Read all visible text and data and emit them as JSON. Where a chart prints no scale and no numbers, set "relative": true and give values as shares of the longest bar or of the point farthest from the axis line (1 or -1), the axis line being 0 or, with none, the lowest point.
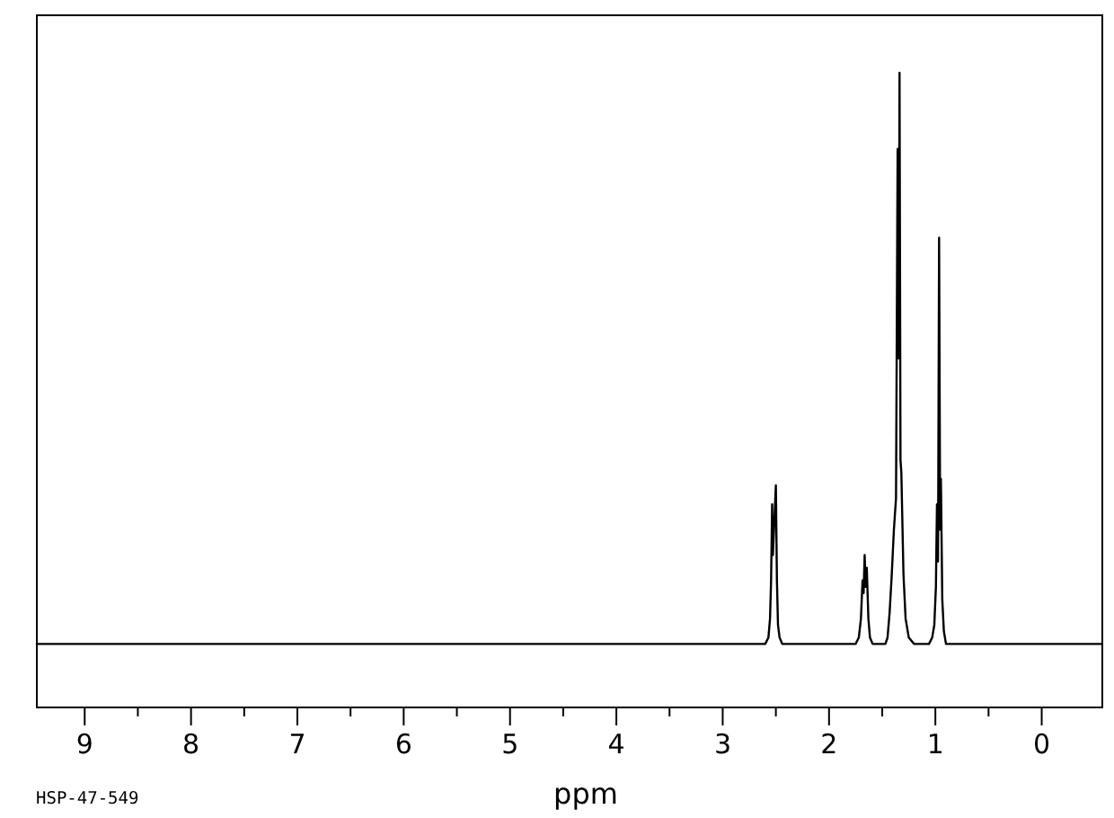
{
  "chart_data": {
    "type": "line",
    "xlabel": "ppm",
    "annotations": [
      "HSP-47-549"
    ],
    "relative": true,
    "color": "#000000",
    "xlim": [
      9.45,
      -0.57
    ],
    "xticks": [
      9,
      {
        "value": 8.5,
        "label": null
      },
      8,
      {
        "value": 7.5,
        "label": null
      },
      7,
      {
        "value": 6.5,
        "label": null
      },
      6,
      {
        "value": 5.5,
        "label": null
      },
      5,
      {
        "value": 4.5,
        "label": null
      },
      4,
      {
        "value": 3.5,
        "label": null
      },
      3,
      {
        "value": 2.5,
        "label": null
      },
      2,
      {
        "value": 1.5,
        "label": null
      },
      1,
      {
        "value": 0.5,
        "label": null
      },
      0
    ],
    "x": [
      9.45,
      2.6,
      2.57,
      2.555,
      2.545,
      2.535,
      2.528,
      2.5,
      2.49,
      2.48,
      2.465,
      2.44,
      1.75,
      1.72,
      1.7,
      1.685,
      1.675,
      1.665,
      1.655,
      1.645,
      1.63,
      1.615,
      1.59,
      1.47,
      1.45,
      1.43,
      1.41,
      1.39,
      1.37,
      1.355,
      1.345,
      1.337,
      1.328,
      1.32,
      1.3,
      1.28,
      1.25,
      1.2,
      1.06,
      1.03,
      1.01,
      0.995,
      0.985,
      0.975,
      0.965,
      0.955,
      0.948,
      0.935,
      0.92,
      0.9,
      0.86,
      -0.57
    ],
    "values": [
      0.1,
      0.1,
      0.11,
      0.14,
      0.2,
      0.32,
      0.24,
      0.35,
      0.2,
      0.13,
      0.11,
      0.1,
      0.1,
      0.11,
      0.14,
      0.2,
      0.18,
      0.24,
      0.19,
      0.22,
      0.14,
      0.11,
      0.1,
      0.1,
      0.11,
      0.15,
      0.21,
      0.28,
      0.33,
      0.88,
      0.55,
      1,
      0.39,
      0.37,
      0.21,
      0.14,
      0.11,
      0.1,
      0.1,
      0.11,
      0.13,
      0.19,
      0.32,
      0.23,
      0.74,
      0.28,
      0.36,
      0.17,
      0.12,
      0.1,
      0.1,
      0.1
    ]
  }
}
